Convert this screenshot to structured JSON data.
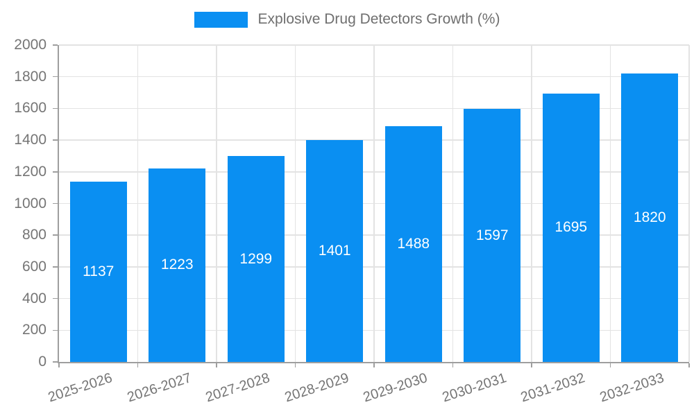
{
  "legend": {
    "label": "Explosive Drug Detectors Growth (%)",
    "swatch_color": "#0a8ff2"
  },
  "chart_data": {
    "type": "bar",
    "title": "Explosive Drug Detectors Growth (%)",
    "categories": [
      "2025-2026",
      "2026-2027",
      "2027-2028",
      "2028-2029",
      "2029-2030",
      "2030-2031",
      "2031-2032",
      "2032-2033"
    ],
    "series": [
      {
        "name": "Explosive Drug Detectors Growth (%)",
        "values": [
          1137,
          1223,
          1299,
          1401,
          1488,
          1597,
          1695,
          1820
        ]
      }
    ],
    "values": [
      1137,
      1223,
      1299,
      1401,
      1488,
      1597,
      1695,
      1820
    ],
    "bar_value_labels": [
      "1137",
      "1223",
      "1299",
      "1401",
      "1488",
      "1597",
      "1695",
      "1820"
    ],
    "xlabel": "",
    "ylabel": "",
    "ylim": [
      0,
      2000
    ],
    "ytick_step": 200,
    "y_ticks": [
      0,
      200,
      400,
      600,
      800,
      1000,
      1200,
      1400,
      1600,
      1800,
      2000
    ],
    "grid": true,
    "legend_position": "top-center",
    "bar_color": "#0a8ff2",
    "bar_label_color": "#ffffff",
    "axis_label_color": "#757575",
    "gridline_color": "#e3e3e3",
    "axis_line_color": "#9e9e9e"
  }
}
